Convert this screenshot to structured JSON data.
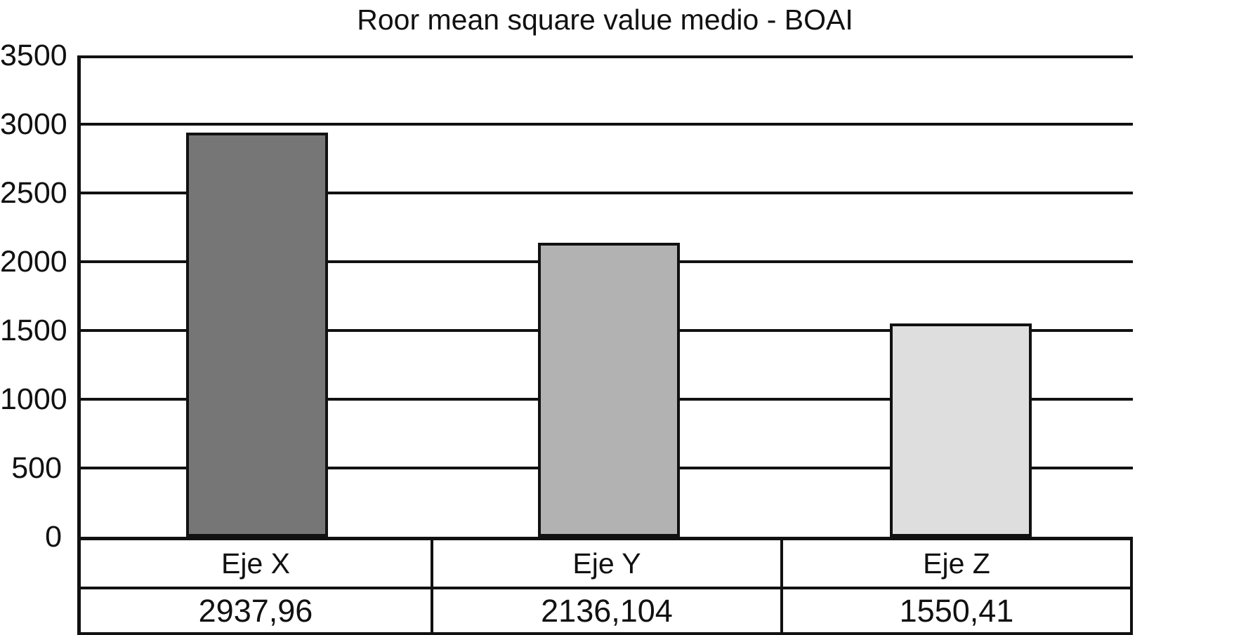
{
  "chart_data": {
    "type": "bar",
    "title": "Roor mean square value medio - BOAI",
    "categories": [
      "Eje X",
      "Eje Y",
      "Eje Z"
    ],
    "values": [
      2937.96,
      2136.104,
      1550.41
    ],
    "value_labels": [
      "2937,96",
      "2136,104",
      "1550,41"
    ],
    "ylim": [
      0,
      3500
    ],
    "ytick_step": 500,
    "ytick_labels": [
      "3500",
      "3000",
      "2500",
      "2000",
      "1500",
      "1000",
      "500",
      "0"
    ],
    "grid": true,
    "legend": false,
    "xlabel": "",
    "ylabel": "",
    "bar_colors": [
      "#767676",
      "#b2b2b2",
      "#dedede"
    ],
    "line_color": "#111111",
    "text_color": "#111111",
    "background": "#ffffff"
  }
}
